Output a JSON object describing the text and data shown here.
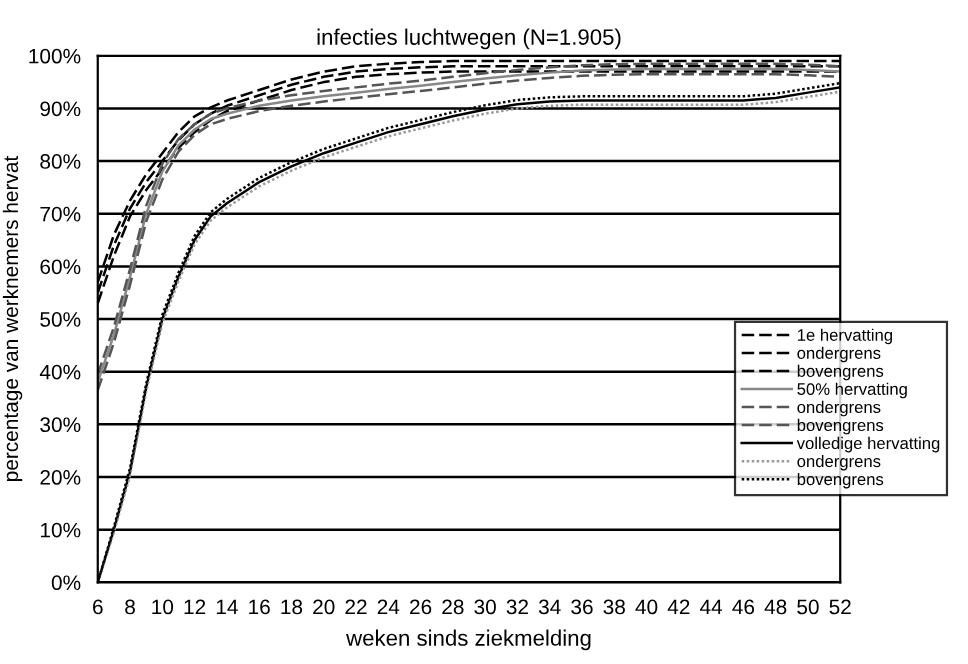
{
  "chart_data": {
    "type": "line",
    "title": "infecties luchtwegen (N=1.905)",
    "xlabel": "weken sinds ziekmelding",
    "ylabel": "percentage van werknemers hervat",
    "x": [
      6,
      7,
      8,
      9,
      10,
      11,
      12,
      13,
      14,
      16,
      18,
      20,
      22,
      24,
      26,
      28,
      30,
      32,
      34,
      36,
      38,
      40,
      42,
      44,
      46,
      48,
      50,
      52
    ],
    "series": [
      {
        "name": "1e hervatting",
        "color": "#000000",
        "line_style": "dashed",
        "values": [
          55,
          64,
          71,
          76,
          80,
          84,
          87,
          89,
          90.5,
          92.5,
          94.5,
          96,
          97,
          97.5,
          97.8,
          98,
          98,
          98,
          98,
          98,
          98,
          98,
          98,
          98,
          98,
          98,
          98,
          98
        ]
      },
      {
        "name": "ondergrens",
        "color": "#000000",
        "line_style": "dashed",
        "values": [
          53,
          62,
          69.5,
          74.5,
          78.5,
          82.5,
          85.5,
          87.8,
          89.5,
          91.5,
          93.5,
          95,
          96,
          96.5,
          96.8,
          97,
          97,
          97,
          97,
          97,
          97,
          97,
          97,
          97,
          97,
          97,
          97,
          97
        ]
      },
      {
        "name": "bovengrens",
        "color": "#000000",
        "line_style": "dashed",
        "values": [
          57,
          66,
          72.5,
          77.5,
          81.5,
          85.5,
          88.5,
          90.2,
          91.5,
          93.5,
          95.5,
          97,
          98,
          98.5,
          98.8,
          99,
          99,
          99,
          99,
          99,
          99,
          99,
          99,
          99,
          99,
          99,
          99,
          99
        ]
      },
      {
        "name": "50% hervatting",
        "color": "#888888",
        "line_style": "solid",
        "values": [
          38,
          47,
          58,
          70,
          78,
          83,
          86,
          88,
          89,
          90.5,
          91.5,
          92.3,
          93,
          93.7,
          94.3,
          95,
          95.7,
          96.3,
          96.8,
          97.2,
          97.4,
          97.5,
          97.5,
          97.5,
          97.5,
          97.5,
          97.3,
          97
        ]
      },
      {
        "name": "ondergrens",
        "color": "#555555",
        "line_style": "dashed",
        "values": [
          36.5,
          45.5,
          56.5,
          68.5,
          76.5,
          81.8,
          85,
          87,
          88,
          89.5,
          90.5,
          91.3,
          92,
          92.7,
          93.3,
          94,
          94.7,
          95.3,
          95.8,
          96.2,
          96.4,
          96.5,
          96.5,
          96.5,
          96.5,
          96.5,
          96.3,
          96
        ]
      },
      {
        "name": "bovengrens",
        "color": "#555555",
        "line_style": "dashed",
        "values": [
          39.5,
          48.5,
          59.5,
          71.5,
          79.5,
          84.2,
          87,
          89,
          90,
          91.5,
          92.5,
          93.3,
          94,
          94.7,
          95.3,
          96,
          96.7,
          97.3,
          97.8,
          98.2,
          98.4,
          98.5,
          98.5,
          98.5,
          98.5,
          98.5,
          98.3,
          98
        ]
      },
      {
        "name": "volledige hervatting",
        "color": "#000000",
        "line_style": "solid",
        "values": [
          0,
          10,
          21,
          37,
          50,
          58,
          65,
          69.5,
          72,
          76,
          79,
          81.5,
          83.5,
          85.5,
          87,
          88.5,
          89.8,
          90.8,
          91.3,
          91.5,
          91.5,
          91.5,
          91.5,
          91.5,
          91.5,
          92,
          93,
          94
        ]
      },
      {
        "name": "ondergrens",
        "color": "#999999",
        "line_style": "dotted",
        "values": [
          0,
          9.5,
          20.3,
          36.3,
          49.2,
          57.2,
          64.2,
          68.7,
          71.2,
          75.2,
          78.2,
          80.7,
          82.7,
          84.7,
          86.2,
          87.7,
          89,
          90,
          90.5,
          90.7,
          90.7,
          90.7,
          90.7,
          90.7,
          90.7,
          91.2,
          92.2,
          93.2
        ]
      },
      {
        "name": "bovengrens",
        "color": "#000000",
        "line_style": "dotted",
        "values": [
          0,
          10.5,
          21.7,
          37.7,
          50.8,
          58.8,
          65.8,
          70.3,
          72.8,
          76.8,
          79.8,
          82.3,
          84.3,
          86.3,
          87.8,
          89.3,
          90.6,
          91.6,
          92.1,
          92.3,
          92.3,
          92.3,
          92.3,
          92.3,
          92.3,
          92.8,
          93.8,
          94.8
        ]
      }
    ],
    "xlim": [
      6,
      52
    ],
    "xticks": [
      6,
      8,
      10,
      12,
      14,
      16,
      18,
      20,
      22,
      24,
      26,
      28,
      30,
      32,
      34,
      36,
      38,
      40,
      42,
      44,
      46,
      48,
      50,
      52
    ],
    "ylim": [
      0,
      100
    ],
    "yticks": [
      {
        "value": 0,
        "label": "0%"
      },
      {
        "value": 10,
        "label": "10%"
      },
      {
        "value": 20,
        "label": "20%"
      },
      {
        "value": 30,
        "label": "30%"
      },
      {
        "value": 40,
        "label": "40%"
      },
      {
        "value": 50,
        "label": "50%"
      },
      {
        "value": 60,
        "label": "60%"
      },
      {
        "value": 70,
        "label": "70%"
      },
      {
        "value": 80,
        "label": "80%"
      },
      {
        "value": 90,
        "label": "90%"
      },
      {
        "value": 100,
        "label": "100%"
      }
    ],
    "grid": "y",
    "legend": "right",
    "marker": "none"
  }
}
